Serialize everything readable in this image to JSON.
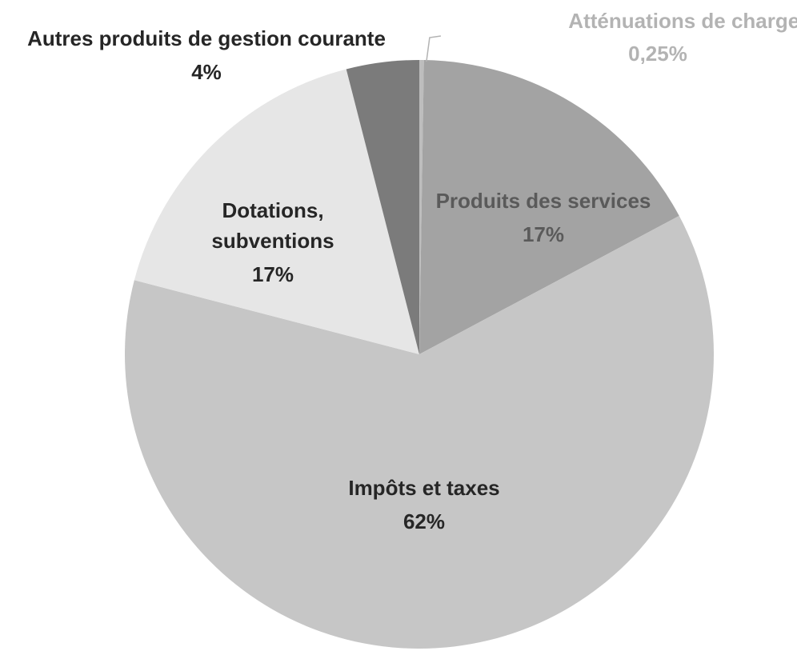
{
  "chart_data": {
    "type": "pie",
    "categories": [
      "Atténuations de charges",
      "Produits des services",
      "Impôts et taxes",
      "Dotations, subventions",
      "Autres produits de gestion courante"
    ],
    "values": [
      0.25,
      17,
      62,
      17,
      4
    ],
    "value_labels": [
      "0,25%",
      "17%",
      "62%",
      "17%",
      "4%"
    ],
    "colors": [
      "#bdbdbd",
      "#a3a3a3",
      "#c6c6c6",
      "#e6e6e6",
      "#7b7b7b"
    ],
    "label_colors": [
      "#b3b3b3",
      "#5a5a5a",
      "#262626",
      "#262626",
      "#262626"
    ],
    "start_angle_deg": 0,
    "direction": "clockwise",
    "legend": "none"
  }
}
